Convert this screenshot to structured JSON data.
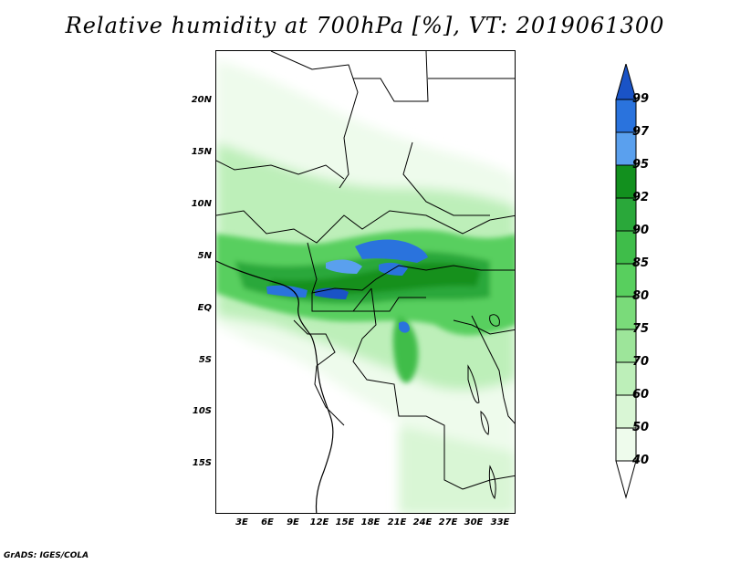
{
  "map": {
    "title": "Relative humidity at 700hPa [%], VT: 2019061300",
    "lat_labels": [
      "20N",
      "15N",
      "10N",
      "5N",
      "EQ",
      "5S",
      "10S",
      "15S"
    ],
    "lon_labels": [
      "3E",
      "6E",
      "9E",
      "12E",
      "15E",
      "18E",
      "21E",
      "24E",
      "27E",
      "30E",
      "33E"
    ],
    "variable": "Relative humidity",
    "units": "%",
    "level": "700hPa",
    "valid_time": "2019061300"
  },
  "colorbar": {
    "levels": [
      "99",
      "97",
      "95",
      "92",
      "90",
      "85",
      "80",
      "75",
      "70",
      "60",
      "50",
      "40"
    ],
    "colors": [
      "#1a53c6",
      "#2a73dd",
      "#5aa0ee",
      "#12901e",
      "#2aa83a",
      "#3fbd4a",
      "#58cf5e",
      "#7adb7a",
      "#9de59a",
      "#bdefb9",
      "#d9f6d5",
      "#eefbec",
      "#ffffff"
    ]
  },
  "footer": {
    "text": "GrADS: IGES/COLA"
  }
}
